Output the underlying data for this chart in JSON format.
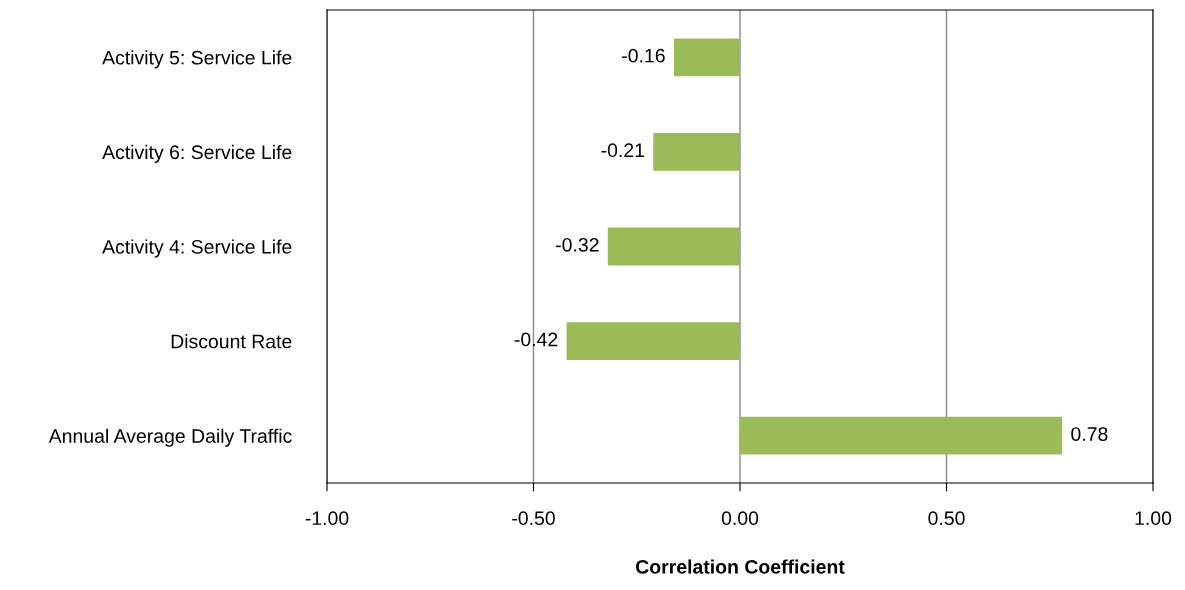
{
  "chart_data": {
    "type": "bar",
    "orientation": "horizontal",
    "xlabel": "Correlation Coefficient",
    "categories": [
      "Activity 5: Service Life",
      "Activity 6: Service Life",
      "Activity 4: Service Life",
      "Discount Rate",
      "Annual Average Daily Traffic"
    ],
    "values": [
      -0.16,
      -0.21,
      -0.32,
      -0.42,
      0.78
    ],
    "color": "#9bbb59",
    "xlim": [
      -1,
      1
    ],
    "xticks": [
      {
        "value": -1,
        "label": "-1.00"
      },
      {
        "value": -0.5,
        "label": "-0.50"
      },
      {
        "value": 0,
        "label": "0.00"
      },
      {
        "value": 0.5,
        "label": "0.50"
      },
      {
        "value": 1,
        "label": "1.00"
      }
    ],
    "grid": "x",
    "data_labels": true
  }
}
